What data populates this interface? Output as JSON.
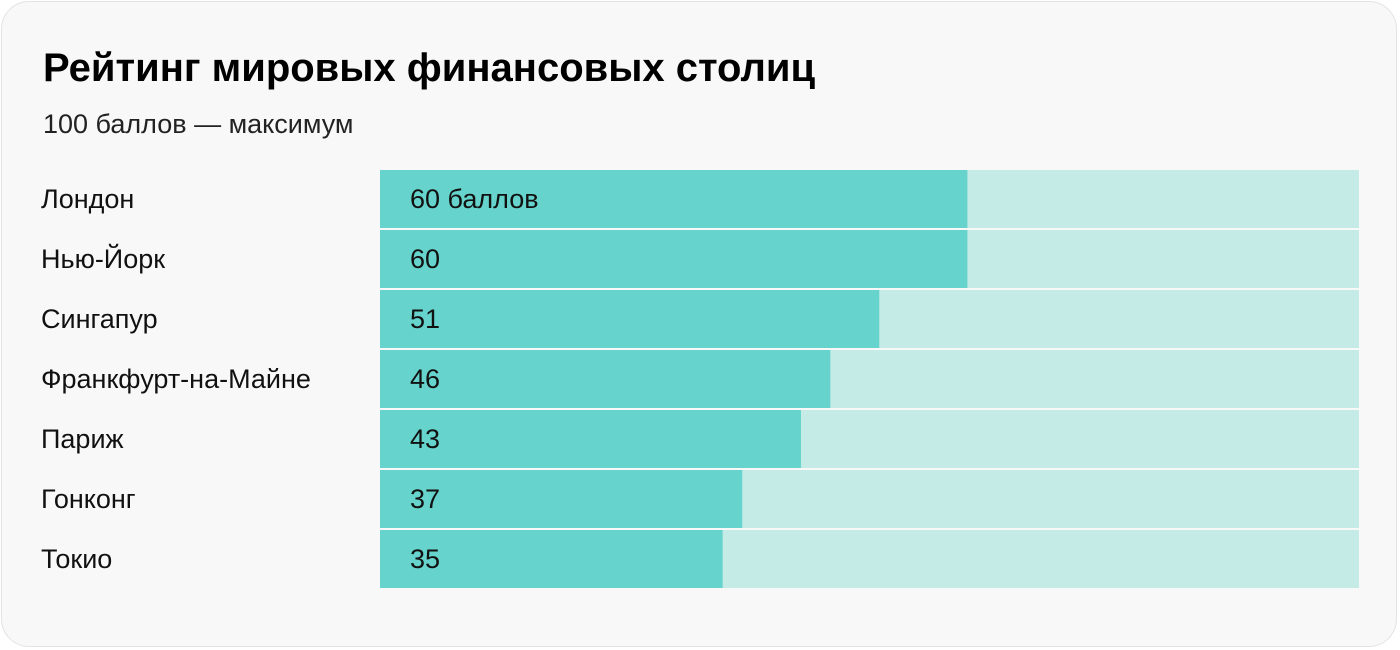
{
  "title": "Рейтинг мировых финансовых столиц",
  "subtitle": "100 баллов — максимум",
  "colors": {
    "bar": "#66d4cc",
    "track": "#c5ebe7",
    "card_background": "#f8f8f8",
    "text": "#111111"
  },
  "chart_data": {
    "type": "bar",
    "orientation": "horizontal",
    "title": "Рейтинг мировых финансовых столиц",
    "subtitle": "100 баллов — максимум",
    "categories": [
      "Лондон",
      "Нью-Йорк",
      "Сингапур",
      "Франкфурт-на-Майне",
      "Париж",
      "Гонконг",
      "Токио"
    ],
    "values": [
      60,
      60,
      51,
      46,
      43,
      37,
      35
    ],
    "value_labels": [
      "60 баллов",
      "60",
      "51",
      "46",
      "43",
      "37",
      "35"
    ],
    "xlim": [
      0,
      100
    ],
    "grid": false,
    "legend": "none"
  }
}
